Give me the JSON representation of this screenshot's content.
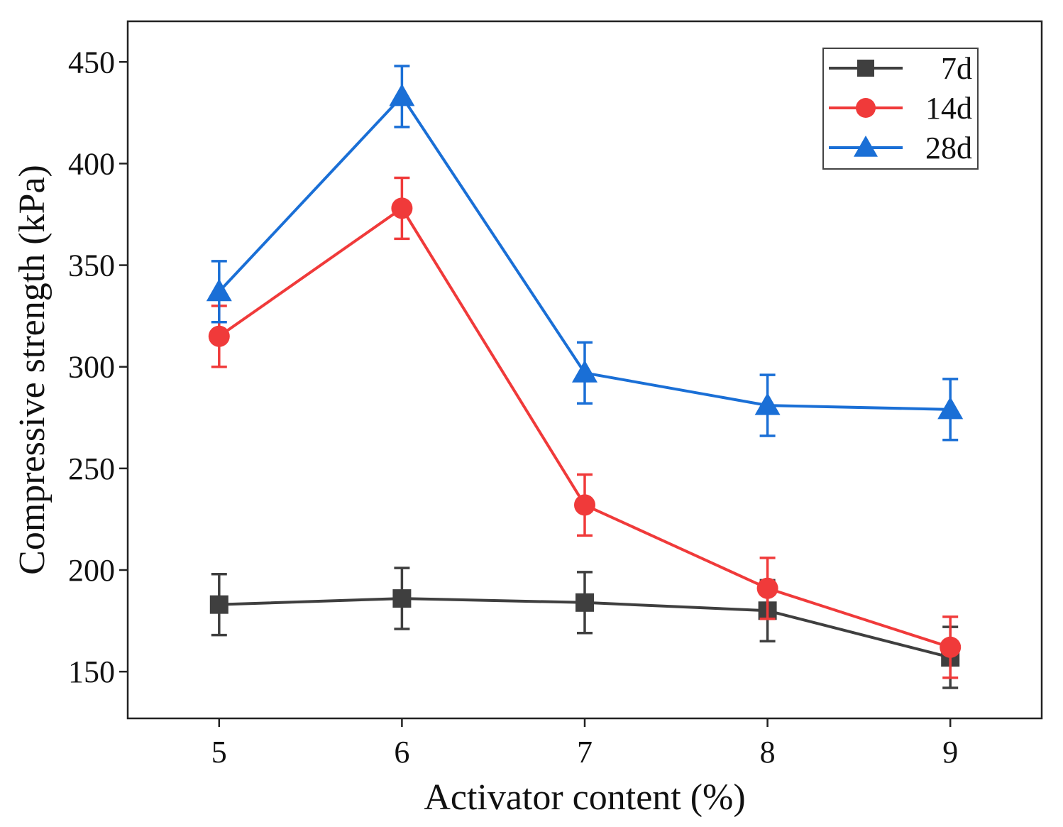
{
  "chart_data": {
    "type": "line",
    "title": "",
    "xlabel": "Activator content (%)",
    "ylabel": "Compressive strength (kPa)",
    "x": [
      5,
      6,
      7,
      8,
      9
    ],
    "xlim": [
      4.5,
      9.5
    ],
    "ylim": [
      127,
      470
    ],
    "xticks": [
      5,
      6,
      7,
      8,
      9
    ],
    "yticks": [
      150,
      200,
      250,
      300,
      350,
      400,
      450
    ],
    "grid": false,
    "legend_position": "top-right",
    "series": [
      {
        "name": "7d",
        "color": "#3f3f3f",
        "marker": "square",
        "values": [
          183,
          186,
          184,
          180,
          157
        ],
        "errors": [
          15,
          15,
          15,
          15,
          15
        ]
      },
      {
        "name": "14d",
        "color": "#f03a3a",
        "marker": "circle",
        "values": [
          315,
          378,
          232,
          191,
          162
        ],
        "errors": [
          15,
          15,
          15,
          15,
          15
        ]
      },
      {
        "name": "28d",
        "color": "#1a6fd6",
        "marker": "triangle",
        "values": [
          337,
          433,
          297,
          281,
          279
        ],
        "errors": [
          15,
          15,
          15,
          15,
          15
        ]
      }
    ]
  }
}
